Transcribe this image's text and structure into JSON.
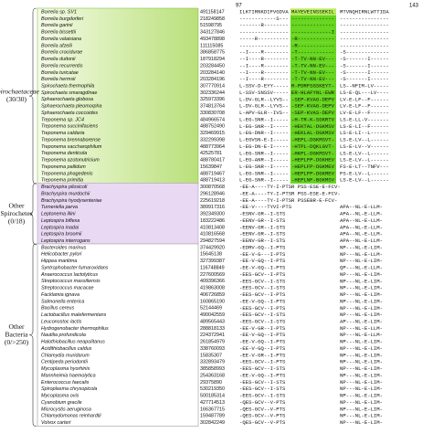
{
  "header": {
    "start": "97",
    "end": "143"
  },
  "groups": [
    {
      "label_lines": [
        "Spirochaetaceae"
      ],
      "count": "(30/30)",
      "rows": [
        {
          "species": "Borrelia sp. SV1",
          "accession": "491158147",
          "s1": "ILKTIRNKDIFVGDVA",
          "s2": "MAYEVEINSSEKIL",
          "s3": "MTVNQHIRNLWTTIDA"
        },
        {
          "species": "Borrelia burgdorferi",
          "accession": "218249858",
          "s1": "------------S---",
          "s2": "--------------",
          "s3": "----------------"
        },
        {
          "species": "Borrelia garinii",
          "accession": "51598795",
          "s1": "-------R--------",
          "s2": "--------------",
          "s3": "----------------"
        },
        {
          "species": "Borrelia bissettii",
          "accession": "343127846",
          "s1": "----------------",
          "s2": "-------------I",
          "s3": "----------------"
        },
        {
          "species": "Borrelia valaisiana",
          "accession": "493478898",
          "s1": "-----R----------",
          "s2": "-R------------",
          "s3": "----------------"
        },
        {
          "species": "Borrelia afzelii",
          "accession": "111115085",
          "s1": "----------------",
          "s2": "-R------------",
          "s3": "----------------"
        },
        {
          "species": "Borrelia crocidurae",
          "accession": "386858775",
          "s1": "--I----R--------",
          "s2": "-T------------",
          "s3": "-S--------------"
        },
        {
          "species": "Borrelia duttonii",
          "accession": "187918294",
          "s1": "--I----R--------",
          "s2": "-T-TV-NN-EV---",
          "s3": "-S-------I------"
        },
        {
          "species": "Borrelia recurrentis",
          "accession": "203284450",
          "s1": "--I----R--------",
          "s2": "-T-TV-NN-EV---",
          "s3": "-S-------I------"
        },
        {
          "species": "Borrelia turicatae",
          "accession": "203284140",
          "s1": "--I----R--------",
          "s2": "-T-TV-NN-EV---",
          "s3": "-S-------I------"
        },
        {
          "species": "Borrelia hermsii",
          "accession": "203284196",
          "s1": "--I----R--------",
          "s2": "-T-TV-NN-EV---",
          "s3": "-S-------I------"
        },
        {
          "species": "Spirochaeta thermophila",
          "accession": "307770914",
          "s1": "L-SSV-D-EYY-----",
          "s2": "R-PDRFSGSKEYT-",
          "s3": "LS--NFIM-LV-----"
        },
        {
          "species": "Spirochaeta smaragdinae",
          "accession": "302336244",
          "s1": "L-SSV-SNSSV-----",
          "s2": "ER-HLAFYNL-EWR",
          "s3": "LS-E-QL---LV----"
        },
        {
          "species": "Sphaerochaeta globosa",
          "accession": "325973396",
          "s1": "L-DV-GLR--LYVS--",
          "s2": "-SEP-KVAG-DEPV",
          "s3": "LV-E-LF--F------"
        },
        {
          "species": "Sphaerochaeta pleomorpha",
          "accession": "374813764",
          "s1": "L-DV-GLR--LYVS--",
          "s2": "-SEP-KVAG-DEPV",
          "s3": "LV-E-LF--F------"
        },
        {
          "species": "Sphaerochaeta coccoides",
          "accession": "330830708",
          "s1": "L-APV-GLR--IVS--",
          "s2": "-SEP-KVAS-DEPV",
          "s3": "LV-E-LF--F------"
        },
        {
          "species": "Treponema sp. JC4",
          "accession": "484966574",
          "s1": "L-EG-SNR--I-----",
          "s2": "-H-TR-K-SGKRTV",
          "s3": "LS-E-LL-V-------"
        },
        {
          "species": "Treponema succinifaciens",
          "accession": "488752490",
          "s1": "L-EG-SNR--I-----",
          "s2": "-HEKTAL-DGKMSV",
          "s3": "LS-E-LI--F------"
        },
        {
          "species": "Treponema caldaria",
          "accession": "329469915",
          "s1": "L-EG-DNR--I-----",
          "s2": "-HEKLAL-DGKMSV",
          "s3": "LS-E-LI--L------"
        },
        {
          "species": "Treponema brennaborense",
          "accession": "332299398",
          "s1": "L-EGVSN-E-I-----",
          "s2": "-HEPL-DGKMSVT-",
          "s3": "LS-E-LV--L------"
        },
        {
          "species": "Treponema saccharophilum",
          "accession": "488773964",
          "s1": "L-EG-DN-E-I-----",
          "s2": "-HTPL-DQKLGVT-",
          "s3": "LS-E-LV--V------"
        },
        {
          "species": "Treponema denticola",
          "accession": "42525781",
          "s1": "L-EG-SNR--I-----",
          "s2": "-HKPL-DGKMSVT-",
          "s3": "LS-E-LV--L------"
        },
        {
          "species": "Treponema azotonutricium",
          "accession": "488780417",
          "s1": "L-EG-ANR--I-----",
          "s2": "-HEPLFP-DGKHEV",
          "s3": "LS-E-LV--L------"
        },
        {
          "species": "Treponema pallidum",
          "accession": "15639847",
          "s1": "L-EG-SNR--I-----",
          "s2": "-HEPLFP-DGKMEV",
          "s3": "FS-E-LT--TNFV---"
        },
        {
          "species": "Treponema phagedenis",
          "accession": "488719467",
          "s1": "L-EG-SNR--I-----",
          "s2": "-HEPLFP-DGKMEV",
          "s3": "FS-E-LV--L------"
        },
        {
          "species": "Treponema primitia",
          "accession": "488719413",
          "s1": "L-EG-SNR--I-----",
          "s2": "-HEPLNF-BGKMSV",
          "s3": "LS-E-LV--L------"
        }
      ]
    },
    {
      "label_lines": [
        "Other",
        "Spirochetes"
      ],
      "count": "(0/18)",
      "rows": [
        {
          "species": "Brachyspira pilosicoli",
          "accession": "300870568",
          "s1": "-EE-A----TY-I-PTS",
          "s2": "R PSS-ESE-E-FCV-"
        },
        {
          "species": "Brachyspira murdochii",
          "accession": "296128946",
          "s1": "-EE-A----TY-I-PTS",
          "s2": "R PSS-ESE-E-FCV-"
        },
        {
          "species": "Brachyspira hyodysenteriae",
          "accession": "225619218",
          "s1": "-EE-A----TY-I-PTS",
          "s2": "R PSSEBR-E-FCV-"
        },
        {
          "species": "Turneriella parva",
          "accession": "389917316",
          "s1": "-EE-V----TYVI-PTS",
          "s3": "APA--NL-E-LLM-"
        },
        {
          "species": "Leptonema illini",
          "accession": "392349300",
          "s1": "-ESNV-GR--I-STS",
          "s3": "APA--NL-E-LLM-"
        },
        {
          "species": "Leptospira biflexa",
          "accession": "183222486",
          "s1": "-EENV-GR--I-STS",
          "s3": "APA--NL-E-LLM-"
        },
        {
          "species": "Leptospira inadai",
          "accession": "410813408",
          "s1": "-EENV-GR--I-STS",
          "s3": "APA--NL-E-LLM-"
        },
        {
          "species": "Leptospira broomii",
          "accession": "410816568",
          "s1": "-EENV-GR--I-STS",
          "s3": "APA--NL-E-LLM-"
        },
        {
          "species": "Leptospira interrogans",
          "accession": "294827594",
          "s1": "-EENV-GR--I-STS",
          "s3": "APA--NL-E-LLM-"
        }
      ]
    },
    {
      "label_lines": [
        "Other",
        "Bacteria"
      ],
      "count": "(0/>250)",
      "rows": [
        {
          "species": "Bacteroides marinus",
          "accession": "374429920",
          "s1": "-EDRV-GQ--I-PTS",
          "s3": "NP---NL-E-LIM-"
        },
        {
          "species": "Helicobacter pylori",
          "accession": "15645138",
          "s1": "-EE-V-G---I-PTS",
          "s3": "NP---NL-E-LLM-"
        },
        {
          "species": "Hippea maritima",
          "accession": "327399387",
          "s1": "-EE-V-GQ--I-PTS",
          "s3": "NP---NL-E-LIM-"
        },
        {
          "species": "Syntrophobacter fumaroxidans",
          "accession": "116748849",
          "s1": "-EE-V-GQ--I-PTS",
          "s3": "QP---NL-E-LLM-"
        },
        {
          "species": "Anaerococcus lactolyticus",
          "accession": "227600569",
          "s1": "-EES-GCV--I-PTS",
          "s3": "NP---NL-E-LIM-"
        },
        {
          "species": "Streptococcus massiliensis",
          "accession": "409396366",
          "s1": "-EES-GCV--I-STS",
          "s3": "NP---NL-E-LIM-"
        },
        {
          "species": "Streptococcus macacae",
          "accession": "419863008",
          "s1": "-EES-GCV--I-STS",
          "s3": "NP---NL-E-LIM-"
        },
        {
          "species": "Facklamia ignava",
          "accession": "406726859",
          "s1": "-EES-GCV--I-PTS",
          "s3": "NP---NL-E-LIM-"
        },
        {
          "species": "Salmonella enterica",
          "accession": "160865190",
          "s1": "-EE-V-GQ--I-PTS",
          "s3": "NP---NL-E-LIM-"
        },
        {
          "species": "Bacillus cereus",
          "accession": "52144469",
          "s1": "-EES-GCV--I-PTS",
          "s3": "NP---NL-E-LIM-"
        },
        {
          "species": "Lactobacillus malefermentans",
          "accession": "490042559",
          "s1": "-EES-GCV--I-STS",
          "s3": "NP---NL-E-LIM-"
        },
        {
          "species": "Leuconostoc lactis",
          "accession": "489565443",
          "s1": "-EES-GCV--I-STS",
          "s3": "AP---NL-E-LIM-"
        },
        {
          "species": "Hydrogenobacter thermophilus",
          "accession": "288818133",
          "s1": "-EE-V-GR--I-PTS",
          "s3": "NP---NL-E-LLM-"
        },
        {
          "species": "Nautilia profundicola",
          "accession": "224372941",
          "s1": "-EE-V-GQ--I-PTS",
          "s3": "NP---NL-E-LLM-"
        },
        {
          "species": "Halothiobacillus neapolitanus",
          "accession": "261854979",
          "s1": "-EE-V-GQ--I-PTS",
          "s3": "NP---NL-E-LIM-"
        },
        {
          "species": "Acidithiobacillus caldus",
          "accession": "338760093",
          "s1": "-EE-V-GQ--I-PTS",
          "s3": "NP---NL-E-LIM-"
        },
        {
          "species": "Chlamydia muridarum",
          "accession": "15835307",
          "s1": "-EE-V-GR--I-PTS",
          "s3": "NP---NL-E-LIM-"
        },
        {
          "species": "Centipeda periodontii",
          "accession": "332893479",
          "s1": "-EES-GCV--I-PTS",
          "s3": "NP---NL-E-LIM-"
        },
        {
          "species": "Mycoplasma hyorhinis",
          "accession": "385858993",
          "s1": "-EES-GCV--I-STS",
          "s3": "NP---NL-E-LIM-"
        },
        {
          "species": "Mannheimia haemolytica",
          "accession": "254363168",
          "s1": "-EE-V-GQ--I-PTS",
          "s3": "NP---NL-E-LIM-"
        },
        {
          "species": "Enterococcus faecalis",
          "accession": "29375890",
          "s1": "-EES-GCV--I-STS",
          "s3": "NP---NL-E-LIM-"
        },
        {
          "species": "Spiroplasma chrysopicola",
          "accession": "530219350",
          "s1": "-EES-GCV--I-STS",
          "s3": "NP---NL-E-LIM-"
        },
        {
          "species": "Mycoplasma ovis",
          "accession": "500185314",
          "s1": "-EES-GCV--I-STS",
          "s3": "NP---NL-E-LIM-"
        },
        {
          "species": "Cyanobium gracile",
          "accession": "427714513",
          "s1": "-QES-GCV--V-PTS",
          "s3": "NP---NL-E-LIM-"
        },
        {
          "species": "Microcystis aeruginosa",
          "accession": "166367715",
          "s1": "-QES-GCV--V-PTS",
          "s3": "NP---NL-E-LIM-"
        },
        {
          "species": "Chlamydomonas reinhardtii",
          "accession": "159487789",
          "s1": "-QES-GCV--V-PTS",
          "s3": "NP---NL-E-LIM-"
        },
        {
          "species": "Volvox carteri",
          "accession": "302842249",
          "s1": "-QES-GCV--V-PTS",
          "s3": "NP---NL-E-LIM-"
        }
      ]
    }
  ]
}
